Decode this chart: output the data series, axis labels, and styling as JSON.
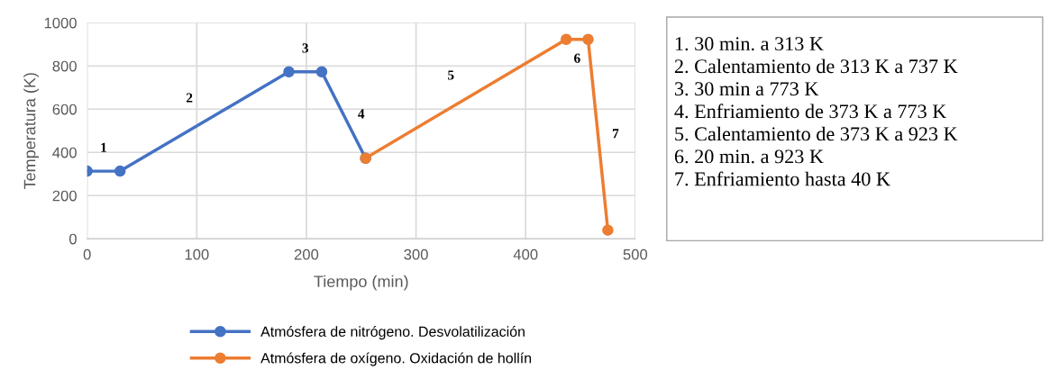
{
  "chart_data": {
    "type": "line",
    "xlabel": "Tiempo (min)",
    "ylabel": "Temperatura (K)",
    "xlim": [
      0,
      500
    ],
    "xticks": [
      0,
      100,
      200,
      300,
      400,
      500
    ],
    "ylim": [
      0,
      1000
    ],
    "yticks": [
      0,
      200,
      400,
      600,
      800,
      1000
    ],
    "grid": true,
    "legend": "bottom",
    "marker": "circle",
    "line_style": "solid",
    "series": [
      {
        "name": "Atmósfera de nitrógeno. Desvolatilización",
        "color": "#4472c4",
        "x": [
          0,
          30,
          184,
          214,
          254
        ],
        "values": [
          313,
          313,
          773,
          773,
          373
        ]
      },
      {
        "name": "Atmósfera de oxígeno. Oxidación de hollín",
        "color": "#ed7d31",
        "x": [
          254,
          437,
          457,
          475
        ],
        "values": [
          373,
          923,
          923,
          40
        ]
      }
    ],
    "annotations": [
      "1",
      "2",
      "3",
      "4",
      "5",
      "6",
      "7",
      "1. 30 min. a 313 K",
      "2. Calentamiento de 313 K a 737 K",
      "3. 30 min a 773 K",
      "4. Enfriamiento de 373 K a 773 K",
      "5. Calentamiento de 373 K a 923 K",
      "6. 20 min. a 923 K",
      "7. Enfriamiento hasta 40 K"
    ]
  }
}
